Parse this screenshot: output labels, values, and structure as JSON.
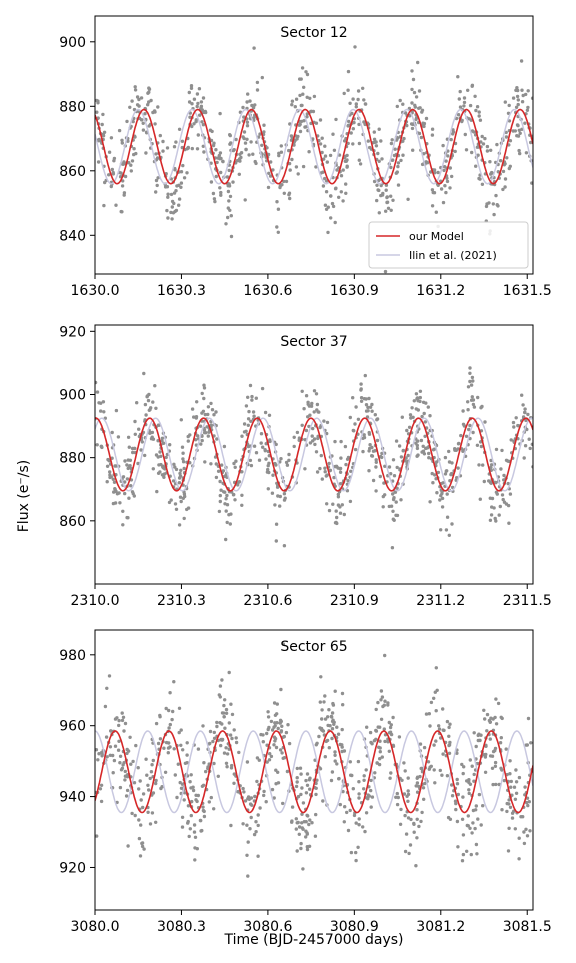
{
  "chart_data": [
    {
      "type": "scatter",
      "title": "Sector 12",
      "xlim": [
        1630.0,
        1631.52
      ],
      "ylim": [
        828,
        908
      ],
      "x_ticks": [
        "1630.0",
        "1630.3",
        "1630.6",
        "1630.9",
        "1631.2",
        "1631.5"
      ],
      "y_ticks": [
        "840",
        "860",
        "880",
        "900"
      ],
      "legend": {
        "placement": "bottom-right",
        "entries": [
          "our Model",
          "Ilin et al. (2021)"
        ]
      },
      "series": [
        {
          "name": "our Model",
          "kind": "sinusoid",
          "mean": 867.5,
          "amplitude": 11.5,
          "period": 0.1865,
          "peak_at": 1630.17,
          "color": "#d62728"
        },
        {
          "name": "Ilin et al. (2021)",
          "kind": "sinusoid",
          "mean": 867.5,
          "amplitude": 11.5,
          "period": 0.1865,
          "peak_at": 1630.15,
          "color": "#c8c8e0"
        },
        {
          "kind": "scatter",
          "points": 900,
          "noise_sd": 6.5,
          "color": "#8f8f8f"
        }
      ]
    },
    {
      "type": "scatter",
      "title": "Sector 37",
      "xlim": [
        2310.0,
        2311.52
      ],
      "ylim": [
        840,
        922
      ],
      "x_ticks": [
        "2310.0",
        "2310.3",
        "2310.6",
        "2310.9",
        "2311.2",
        "2311.5"
      ],
      "y_ticks": [
        "860",
        "880",
        "900",
        "920"
      ],
      "series": [
        {
          "name": "our Model",
          "kind": "sinusoid",
          "mean": 881,
          "amplitude": 11.5,
          "period": 0.1865,
          "peak_at": 2310.19,
          "color": "#d62728"
        },
        {
          "name": "Ilin et al. (2021)",
          "kind": "sinusoid",
          "mean": 881,
          "amplitude": 11.5,
          "period": 0.1865,
          "peak_at": 2310.21,
          "color": "#c8c8e0"
        },
        {
          "kind": "scatter",
          "points": 900,
          "noise_sd": 6.5,
          "color": "#8f8f8f"
        }
      ]
    },
    {
      "type": "scatter",
      "title": "Sector 65",
      "xlim": [
        3080.0,
        3081.52
      ],
      "ylim": [
        908,
        987
      ],
      "x_ticks": [
        "3080.0",
        "3080.3",
        "3080.6",
        "3080.9",
        "3081.2",
        "3081.5"
      ],
      "y_ticks": [
        "920",
        "940",
        "960",
        "980"
      ],
      "series": [
        {
          "name": "our Model",
          "kind": "sinusoid",
          "mean": 947,
          "amplitude": 11.5,
          "period": 0.1865,
          "peak_at": 3080.07,
          "color": "#d62728"
        },
        {
          "name": "Ilin et al. (2021)",
          "kind": "sinusoid",
          "mean": 947,
          "amplitude": 11.5,
          "period": 0.183,
          "peak_at": 3080.0,
          "color": "#c8c8e0"
        },
        {
          "kind": "scatter",
          "points": 900,
          "noise_sd": 7.5,
          "color": "#8f8f8f"
        }
      ]
    }
  ],
  "ylabel": "Flux (e⁻/s)",
  "xlabel": "Time (BJD-2457000 days)"
}
